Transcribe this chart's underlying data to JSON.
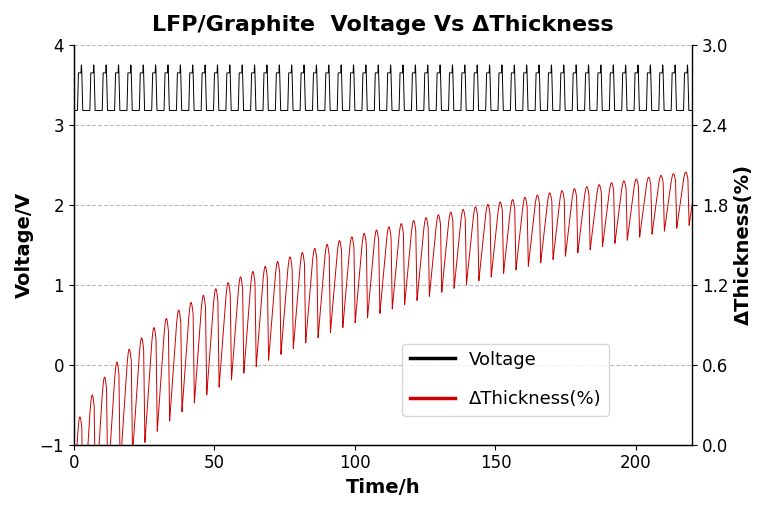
{
  "title": "LFP/Graphite  Voltage Vs ΔThickness",
  "xlabel": "Time/h",
  "ylabel_left": "Voltage/V",
  "ylabel_right": "ΔThickness(%)",
  "xlim": [
    0,
    220
  ],
  "ylim_left": [
    -1,
    4
  ],
  "ylim_right": [
    0,
    3
  ],
  "xticks": [
    0,
    50,
    100,
    150,
    200
  ],
  "yticks_left": [
    -1,
    0,
    1,
    2,
    3,
    4
  ],
  "yticks_right": [
    0,
    0.6,
    1.2,
    1.8,
    2.4,
    3.0
  ],
  "n_cycles": 50,
  "total_time": 220,
  "legend_voltage": "Voltage",
  "legend_thickness": "ΔThickness(%)",
  "background_color": "#ffffff",
  "voltage_color": "#000000",
  "thickness_color": "#cc0000",
  "grid_color": "#aaaaaa",
  "title_fontsize": 16,
  "label_fontsize": 14,
  "tick_fontsize": 12,
  "legend_fontsize": 13
}
